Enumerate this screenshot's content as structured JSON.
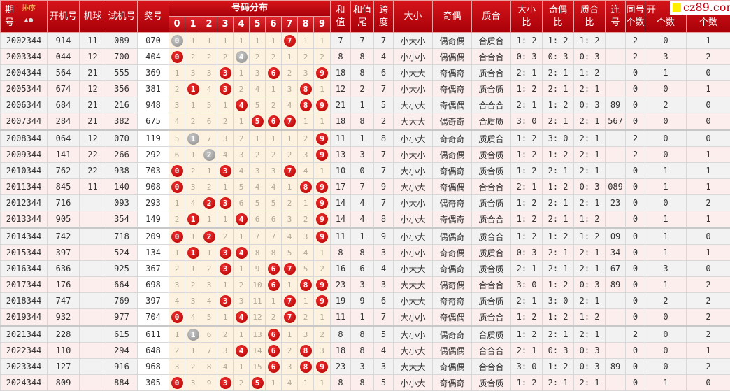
{
  "header": {
    "qihao": [
      "期",
      "号"
    ],
    "sort": "排序",
    "kaiji": "开机号",
    "jiqiu": "机球",
    "shiji": "试机号",
    "jiang": "奖号",
    "dist": "号码分布",
    "digits": [
      "0",
      "1",
      "2",
      "3",
      "4",
      "5",
      "6",
      "7",
      "8",
      "9"
    ],
    "hezhi": [
      "和",
      "值"
    ],
    "hezhiwei": [
      "和值",
      "尾"
    ],
    "kuadu": [
      "跨",
      "度"
    ],
    "daxiao": "大小",
    "jiou": "奇偶",
    "zhihe": "质合",
    "dxb": [
      "大小",
      "比"
    ],
    "job": [
      "奇偶",
      "比"
    ],
    "zhb": [
      "质合",
      "比"
    ],
    "lianhao": [
      "连",
      "号"
    ],
    "tonghao": [
      "同号",
      "个数"
    ],
    "kai": "开",
    "c1": "个数",
    "c2": "个数"
  },
  "watermark": "cz89.com",
  "colors": {
    "header": "#c00010",
    "ball_hit": "#d01010",
    "ball_pair": "#999999",
    "dist_bg": "#fdf1df"
  },
  "rows": [
    {
      "q": "2002344",
      "k": "914",
      "jq": "11",
      "s": "089",
      "j": "070",
      "d": [
        "g0",
        "1",
        "1",
        "1",
        "1",
        "1",
        "1",
        "r7",
        "1",
        "1"
      ],
      "hz": "7",
      "hw": "7",
      "kd": "7",
      "dx": "小大小",
      "jo": "偶奇偶",
      "zh": "合质合",
      "dxb": "1: 2",
      "job": "1: 2",
      "zhb": "1: 2",
      "lh": "",
      "th": "2",
      "a": "0",
      "b": "1"
    },
    {
      "q": "2003344",
      "k": "044",
      "jq": "12",
      "s": "700",
      "j": "404",
      "d": [
        "r0",
        "2",
        "2",
        "2",
        "g4",
        "2",
        "2",
        "1",
        "2",
        "2"
      ],
      "hz": "8",
      "hw": "8",
      "kd": "4",
      "dx": "小小小",
      "jo": "偶偶偶",
      "zh": "合合合",
      "dxb": "0: 3",
      "job": "0: 3",
      "zhb": "0: 3",
      "lh": "",
      "th": "2",
      "a": "3",
      "b": "2"
    },
    {
      "q": "2004344",
      "k": "564",
      "jq": "21",
      "s": "555",
      "j": "369",
      "d": [
        "1",
        "3",
        "3",
        "r3",
        "1",
        "3",
        "r6",
        "2",
        "3",
        "r9"
      ],
      "hz": "18",
      "hw": "8",
      "kd": "6",
      "dx": "小大大",
      "jo": "奇偶奇",
      "zh": "质合合",
      "dxb": "2: 1",
      "job": "2: 1",
      "zhb": "1: 2",
      "lh": "",
      "th": "0",
      "a": "1",
      "b": "0"
    },
    {
      "q": "2005344",
      "k": "674",
      "jq": "12",
      "s": "356",
      "j": "381",
      "d": [
        "2",
        "r1",
        "4",
        "r3",
        "2",
        "4",
        "1",
        "3",
        "r8",
        "1"
      ],
      "hz": "12",
      "hw": "2",
      "kd": "7",
      "dx": "小大小",
      "jo": "奇偶奇",
      "zh": "质合质",
      "dxb": "1: 2",
      "job": "2: 1",
      "zhb": "2: 1",
      "lh": "",
      "th": "0",
      "a": "0",
      "b": "1"
    },
    {
      "q": "2006344",
      "k": "684",
      "jq": "21",
      "s": "216",
      "j": "948",
      "d": [
        "3",
        "1",
        "5",
        "1",
        "r4",
        "5",
        "2",
        "4",
        "r8",
        "r9"
      ],
      "hz": "21",
      "hw": "1",
      "kd": "5",
      "dx": "大小大",
      "jo": "奇偶偶",
      "zh": "合合合",
      "dxb": "2: 1",
      "job": "1: 2",
      "zhb": "0: 3",
      "lh": "89",
      "th": "0",
      "a": "2",
      "b": "0"
    },
    {
      "q": "2007344",
      "k": "284",
      "jq": "21",
      "s": "382",
      "j": "675",
      "d": [
        "4",
        "2",
        "6",
        "2",
        "1",
        "r5",
        "r6",
        "r7",
        "1",
        "1"
      ],
      "hz": "18",
      "hw": "8",
      "kd": "2",
      "dx": "大大大",
      "jo": "偶奇奇",
      "zh": "合质质",
      "dxb": "3: 0",
      "job": "2: 1",
      "zhb": "2: 1",
      "lh": "567",
      "th": "0",
      "a": "0",
      "b": "0"
    },
    {
      "q": "2008344",
      "k": "064",
      "jq": "12",
      "s": "070",
      "j": "119",
      "d": [
        "5",
        "g1",
        "7",
        "3",
        "2",
        "1",
        "1",
        "1",
        "2",
        "r9"
      ],
      "hz": "11",
      "hw": "1",
      "kd": "8",
      "dx": "小小大",
      "jo": "奇奇奇",
      "zh": "质质合",
      "dxb": "1: 2",
      "job": "3: 0",
      "zhb": "2: 1",
      "lh": "",
      "th": "2",
      "a": "0",
      "b": "0"
    },
    {
      "q": "2009344",
      "k": "141",
      "jq": "22",
      "s": "266",
      "j": "292",
      "d": [
        "6",
        "1",
        "g2",
        "4",
        "3",
        "2",
        "2",
        "2",
        "3",
        "r9"
      ],
      "hz": "13",
      "hw": "3",
      "kd": "7",
      "dx": "小大小",
      "jo": "偶奇偶",
      "zh": "质合质",
      "dxb": "1: 2",
      "job": "1: 2",
      "zhb": "2: 1",
      "lh": "",
      "th": "2",
      "a": "0",
      "b": "1"
    },
    {
      "q": "2010344",
      "k": "762",
      "jq": "22",
      "s": "938",
      "j": "703",
      "d": [
        "r0",
        "2",
        "1",
        "r3",
        "4",
        "3",
        "3",
        "r7",
        "4",
        "1"
      ],
      "hz": "10",
      "hw": "0",
      "kd": "7",
      "dx": "大小小",
      "jo": "奇偶奇",
      "zh": "质合质",
      "dxb": "1: 2",
      "job": "2: 1",
      "zhb": "2: 1",
      "lh": "",
      "th": "0",
      "a": "1",
      "b": "1"
    },
    {
      "q": "2011344",
      "k": "845",
      "jq": "11",
      "s": "140",
      "j": "908",
      "d": [
        "r0",
        "3",
        "2",
        "1",
        "5",
        "4",
        "4",
        "1",
        "r8",
        "r9"
      ],
      "hz": "17",
      "hw": "7",
      "kd": "9",
      "dx": "大小大",
      "jo": "奇偶偶",
      "zh": "合合合",
      "dxb": "2: 1",
      "job": "1: 2",
      "zhb": "0: 3",
      "lh": "089",
      "th": "0",
      "a": "1",
      "b": "1"
    },
    {
      "q": "2012344",
      "k": "716",
      "jq": "",
      "s": "093",
      "j": "293",
      "d": [
        "1",
        "4",
        "r2",
        "r3",
        "6",
        "5",
        "5",
        "2",
        "1",
        "r9"
      ],
      "hz": "14",
      "hw": "4",
      "kd": "7",
      "dx": "小大小",
      "jo": "偶奇奇",
      "zh": "质合质",
      "dxb": "1: 2",
      "job": "2: 1",
      "zhb": "2: 1",
      "lh": "23",
      "th": "0",
      "a": "0",
      "b": "2"
    },
    {
      "q": "2013344",
      "k": "905",
      "jq": "",
      "s": "354",
      "j": "149",
      "d": [
        "2",
        "r1",
        "1",
        "1",
        "r4",
        "6",
        "6",
        "3",
        "2",
        "r9"
      ],
      "hz": "14",
      "hw": "4",
      "kd": "8",
      "dx": "小小大",
      "jo": "奇偶奇",
      "zh": "质合合",
      "dxb": "1: 2",
      "job": "2: 1",
      "zhb": "1: 2",
      "lh": "",
      "th": "0",
      "a": "1",
      "b": "1"
    },
    {
      "q": "2014344",
      "k": "742",
      "jq": "",
      "s": "718",
      "j": "209",
      "d": [
        "r0",
        "1",
        "r2",
        "2",
        "1",
        "7",
        "7",
        "4",
        "3",
        "r9"
      ],
      "hz": "11",
      "hw": "1",
      "kd": "9",
      "dx": "小小大",
      "jo": "偶偶奇",
      "zh": "质合合",
      "dxb": "1: 2",
      "job": "1: 2",
      "zhb": "1: 2",
      "lh": "09",
      "th": "0",
      "a": "1",
      "b": "0"
    },
    {
      "q": "2015344",
      "k": "397",
      "jq": "",
      "s": "524",
      "j": "134",
      "d": [
        "1",
        "r1",
        "1",
        "r3",
        "r4",
        "8",
        "8",
        "5",
        "4",
        "1"
      ],
      "hz": "8",
      "hw": "8",
      "kd": "3",
      "dx": "小小小",
      "jo": "奇奇偶",
      "zh": "质质合",
      "dxb": "0: 3",
      "job": "2: 1",
      "zhb": "2: 1",
      "lh": "34",
      "th": "0",
      "a": "1",
      "b": "1"
    },
    {
      "q": "2016344",
      "k": "636",
      "jq": "",
      "s": "925",
      "j": "367",
      "d": [
        "2",
        "1",
        "2",
        "r3",
        "1",
        "9",
        "r6",
        "r7",
        "5",
        "2"
      ],
      "hz": "16",
      "hw": "6",
      "kd": "4",
      "dx": "小大大",
      "jo": "奇偶奇",
      "zh": "质合质",
      "dxb": "2: 1",
      "job": "2: 1",
      "zhb": "2: 1",
      "lh": "67",
      "th": "0",
      "a": "3",
      "b": "0"
    },
    {
      "q": "2017344",
      "k": "176",
      "jq": "",
      "s": "664",
      "j": "698",
      "d": [
        "3",
        "2",
        "3",
        "1",
        "2",
        "10",
        "r6",
        "1",
        "r8",
        "r9"
      ],
      "hz": "23",
      "hw": "3",
      "kd": "3",
      "dx": "大大大",
      "jo": "偶奇偶",
      "zh": "合合合",
      "dxb": "3: 0",
      "job": "1: 2",
      "zhb": "0: 3",
      "lh": "89",
      "th": "0",
      "a": "1",
      "b": "2"
    },
    {
      "q": "2018344",
      "k": "747",
      "jq": "",
      "s": "769",
      "j": "397",
      "d": [
        "4",
        "3",
        "4",
        "r3",
        "3",
        "11",
        "1",
        "r7",
        "1",
        "r9"
      ],
      "hz": "19",
      "hw": "9",
      "kd": "6",
      "dx": "小大大",
      "jo": "奇奇奇",
      "zh": "质合质",
      "dxb": "2: 1",
      "job": "3: 0",
      "zhb": "2: 1",
      "lh": "",
      "th": "0",
      "a": "2",
      "b": "2"
    },
    {
      "q": "2019344",
      "k": "932",
      "jq": "",
      "s": "977",
      "j": "704",
      "d": [
        "r0",
        "4",
        "5",
        "1",
        "r4",
        "12",
        "2",
        "r7",
        "2",
        "1"
      ],
      "hz": "11",
      "hw": "1",
      "kd": "7",
      "dx": "大小小",
      "jo": "奇偶偶",
      "zh": "质合合",
      "dxb": "1: 2",
      "job": "1: 2",
      "zhb": "1: 2",
      "lh": "",
      "th": "0",
      "a": "0",
      "b": "2"
    },
    {
      "q": "2021344",
      "k": "228",
      "jq": "",
      "s": "615",
      "j": "611",
      "d": [
        "1",
        "g1",
        "6",
        "2",
        "1",
        "13",
        "r6",
        "1",
        "3",
        "2"
      ],
      "hz": "8",
      "hw": "8",
      "kd": "5",
      "dx": "大小小",
      "jo": "偶奇奇",
      "zh": "合质质",
      "dxb": "1: 2",
      "job": "2: 1",
      "zhb": "2: 1",
      "lh": "",
      "th": "2",
      "a": "0",
      "b": "2"
    },
    {
      "q": "2022344",
      "k": "110",
      "jq": "",
      "s": "294",
      "j": "648",
      "d": [
        "2",
        "1",
        "7",
        "3",
        "r4",
        "14",
        "r6",
        "2",
        "r8",
        "3"
      ],
      "hz": "18",
      "hw": "8",
      "kd": "4",
      "dx": "大小大",
      "jo": "偶偶偶",
      "zh": "合合合",
      "dxb": "2: 1",
      "job": "0: 3",
      "zhb": "0: 3",
      "lh": "",
      "th": "0",
      "a": "0",
      "b": "1"
    },
    {
      "q": "2023344",
      "k": "127",
      "jq": "",
      "s": "916",
      "j": "968",
      "d": [
        "3",
        "2",
        "8",
        "4",
        "1",
        "15",
        "r6",
        "3",
        "r8",
        "r9"
      ],
      "hz": "23",
      "hw": "3",
      "kd": "3",
      "dx": "大大大",
      "jo": "奇偶偶",
      "zh": "合合合",
      "dxb": "3: 0",
      "job": "1: 2",
      "zhb": "0: 3",
      "lh": "89",
      "th": "0",
      "a": "0",
      "b": "2"
    },
    {
      "q": "2024344",
      "k": "809",
      "jq": "",
      "s": "884",
      "j": "305",
      "d": [
        "r0",
        "3",
        "9",
        "r3",
        "2",
        "r5",
        "1",
        "4",
        "1",
        "1"
      ],
      "hz": "8",
      "hw": "8",
      "kd": "5",
      "dx": "小小大",
      "jo": "奇偶奇",
      "zh": "质合质",
      "dxb": "1: 2",
      "job": "2: 1",
      "zhb": "2: 1",
      "lh": "",
      "th": "0",
      "a": "1",
      "b": "0"
    }
  ]
}
